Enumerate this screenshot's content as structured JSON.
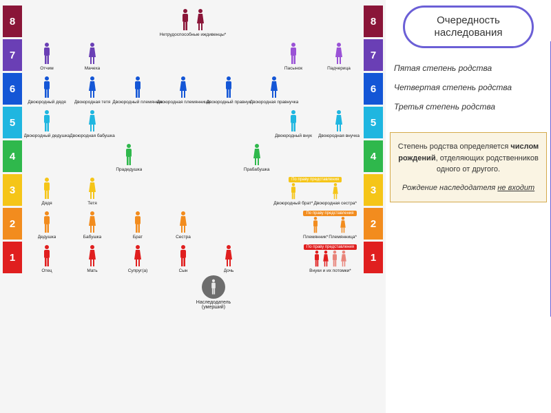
{
  "title": "Очередность наследования",
  "degree_notes": [
    "Пятая степень родства",
    "Четвертая степень родства",
    "Третья степень родства"
  ],
  "info_box": {
    "text_prefix": "Степень родства определяется ",
    "bold": "числом рождений",
    "text_suffix": ", отделяющих родственников одного от другого.",
    "italic_prefix": "Рождение наследодателя ",
    "italic_underline": "не входит"
  },
  "colors": {
    "title_border": "#6b5fd6",
    "info_bg": "#faf4e3",
    "info_border": "#d4a94a"
  },
  "right_rep_tag": "По праву представления",
  "originator": {
    "label1": "Наследодатель",
    "label2": "(умерший)",
    "color": "#6d6d6d",
    "icon": "#e8e8e8"
  },
  "rows": [
    {
      "num": "8",
      "color": "#8a1538",
      "people": [
        {
          "sex": "m",
          "color": "#8a1538"
        },
        {
          "sex": "f",
          "color": "#8a1538"
        }
      ],
      "center_label": "Нетрудоспособные иждивенцы*",
      "justify": "center"
    },
    {
      "num": "7",
      "color": "#6a3fb5",
      "people": [
        {
          "sex": "m",
          "color": "#6a3fb5",
          "lbl": "Отчим"
        },
        {
          "sex": "f",
          "color": "#6a3fb5",
          "lbl": "Мачеха"
        },
        {
          "spacer": true
        },
        {
          "sex": "m",
          "color": "#9a52d6",
          "lbl": "Пасынок"
        },
        {
          "sex": "f",
          "color": "#9a52d6",
          "lbl": "Падчерица"
        }
      ]
    },
    {
      "num": "6",
      "color": "#1456d6",
      "people": [
        {
          "sex": "m",
          "color": "#1456d6",
          "lbl": "Двоюродный дядя"
        },
        {
          "sex": "f",
          "color": "#1456d6",
          "lbl": "Двоюродная тетя"
        },
        {
          "sex": "m",
          "color": "#1456d6",
          "lbl": "Двоюродный племянник"
        },
        {
          "sex": "f",
          "color": "#1456d6",
          "lbl": "Двоюродная племянница"
        },
        {
          "sex": "m",
          "color": "#1456d6",
          "lbl": "Двоюродный правнук"
        },
        {
          "sex": "f",
          "color": "#1456d6",
          "lbl": "Двоюродная правнучка"
        }
      ]
    },
    {
      "num": "5",
      "color": "#1fb6e0",
      "people": [
        {
          "sex": "m",
          "color": "#1fb6e0",
          "lbl": "Двоюродный дедушка"
        },
        {
          "sex": "f",
          "color": "#1fb6e0",
          "lbl": "Двоюродная бабушка"
        },
        {
          "spacer": true
        },
        {
          "sex": "m",
          "color": "#1fb6e0",
          "lbl": "Двоюродный внук"
        },
        {
          "sex": "f",
          "color": "#1fb6e0",
          "lbl": "Двоюродная внучка"
        }
      ]
    },
    {
      "num": "4",
      "color": "#2fb84c",
      "people": [
        {
          "spacer": true
        },
        {
          "sex": "m",
          "color": "#2fb84c",
          "lbl": "Прадедушка"
        },
        {
          "spacer": true
        },
        {
          "sex": "f",
          "color": "#2fb84c",
          "lbl": "Прабабушка"
        },
        {
          "spacer": true
        }
      ]
    },
    {
      "num": "3",
      "color": "#f5c518",
      "people": [
        {
          "sex": "m",
          "color": "#f5c518",
          "lbl": "Дядя"
        },
        {
          "sex": "f",
          "color": "#f5c518",
          "lbl": "Тетя"
        }
      ],
      "right_group": {
        "tag_color": "#f5c518",
        "people": [
          {
            "sex": "m",
            "color": "#f5c518",
            "lbl": "Двоюродный брат*"
          },
          {
            "sex": "f",
            "color": "#f5c518",
            "lbl": "Двоюродная сестра*"
          }
        ]
      }
    },
    {
      "num": "2",
      "color": "#f28c1e",
      "people": [
        {
          "sex": "m",
          "color": "#f28c1e",
          "lbl": "Дедушка"
        },
        {
          "sex": "f",
          "color": "#f28c1e",
          "lbl": "Бабушка"
        },
        {
          "sex": "m",
          "color": "#f28c1e",
          "lbl": "Брат"
        },
        {
          "sex": "f",
          "color": "#f28c1e",
          "lbl": "Сестра"
        }
      ],
      "right_group": {
        "tag_color": "#f28c1e",
        "people": [
          {
            "sex": "m",
            "color": "#f28c1e",
            "lbl": "Племянник*"
          },
          {
            "sex": "f",
            "color": "#f28c1e",
            "lbl": "Племянница*"
          }
        ]
      }
    },
    {
      "num": "1",
      "color": "#e01f1f",
      "people": [
        {
          "sex": "m",
          "color": "#e01f1f",
          "lbl": "Отец"
        },
        {
          "sex": "f",
          "color": "#e01f1f",
          "lbl": "Мать"
        },
        {
          "sex": "f",
          "color": "#e01f1f",
          "lbl": "Супруг(а)"
        },
        {
          "sex": "m",
          "color": "#e01f1f",
          "lbl": "Сын"
        },
        {
          "sex": "f",
          "color": "#e01f1f",
          "lbl": "Дочь"
        }
      ],
      "right_group": {
        "tag_color": "#e01f1f",
        "label": "Внуки и их потомки*",
        "people": [
          {
            "sex": "m",
            "color": "#e01f1f"
          },
          {
            "sex": "f",
            "color": "#e01f1f"
          },
          {
            "sex": "m",
            "color": "#e8847a"
          },
          {
            "sex": "f",
            "color": "#e8847a"
          }
        ]
      }
    }
  ]
}
